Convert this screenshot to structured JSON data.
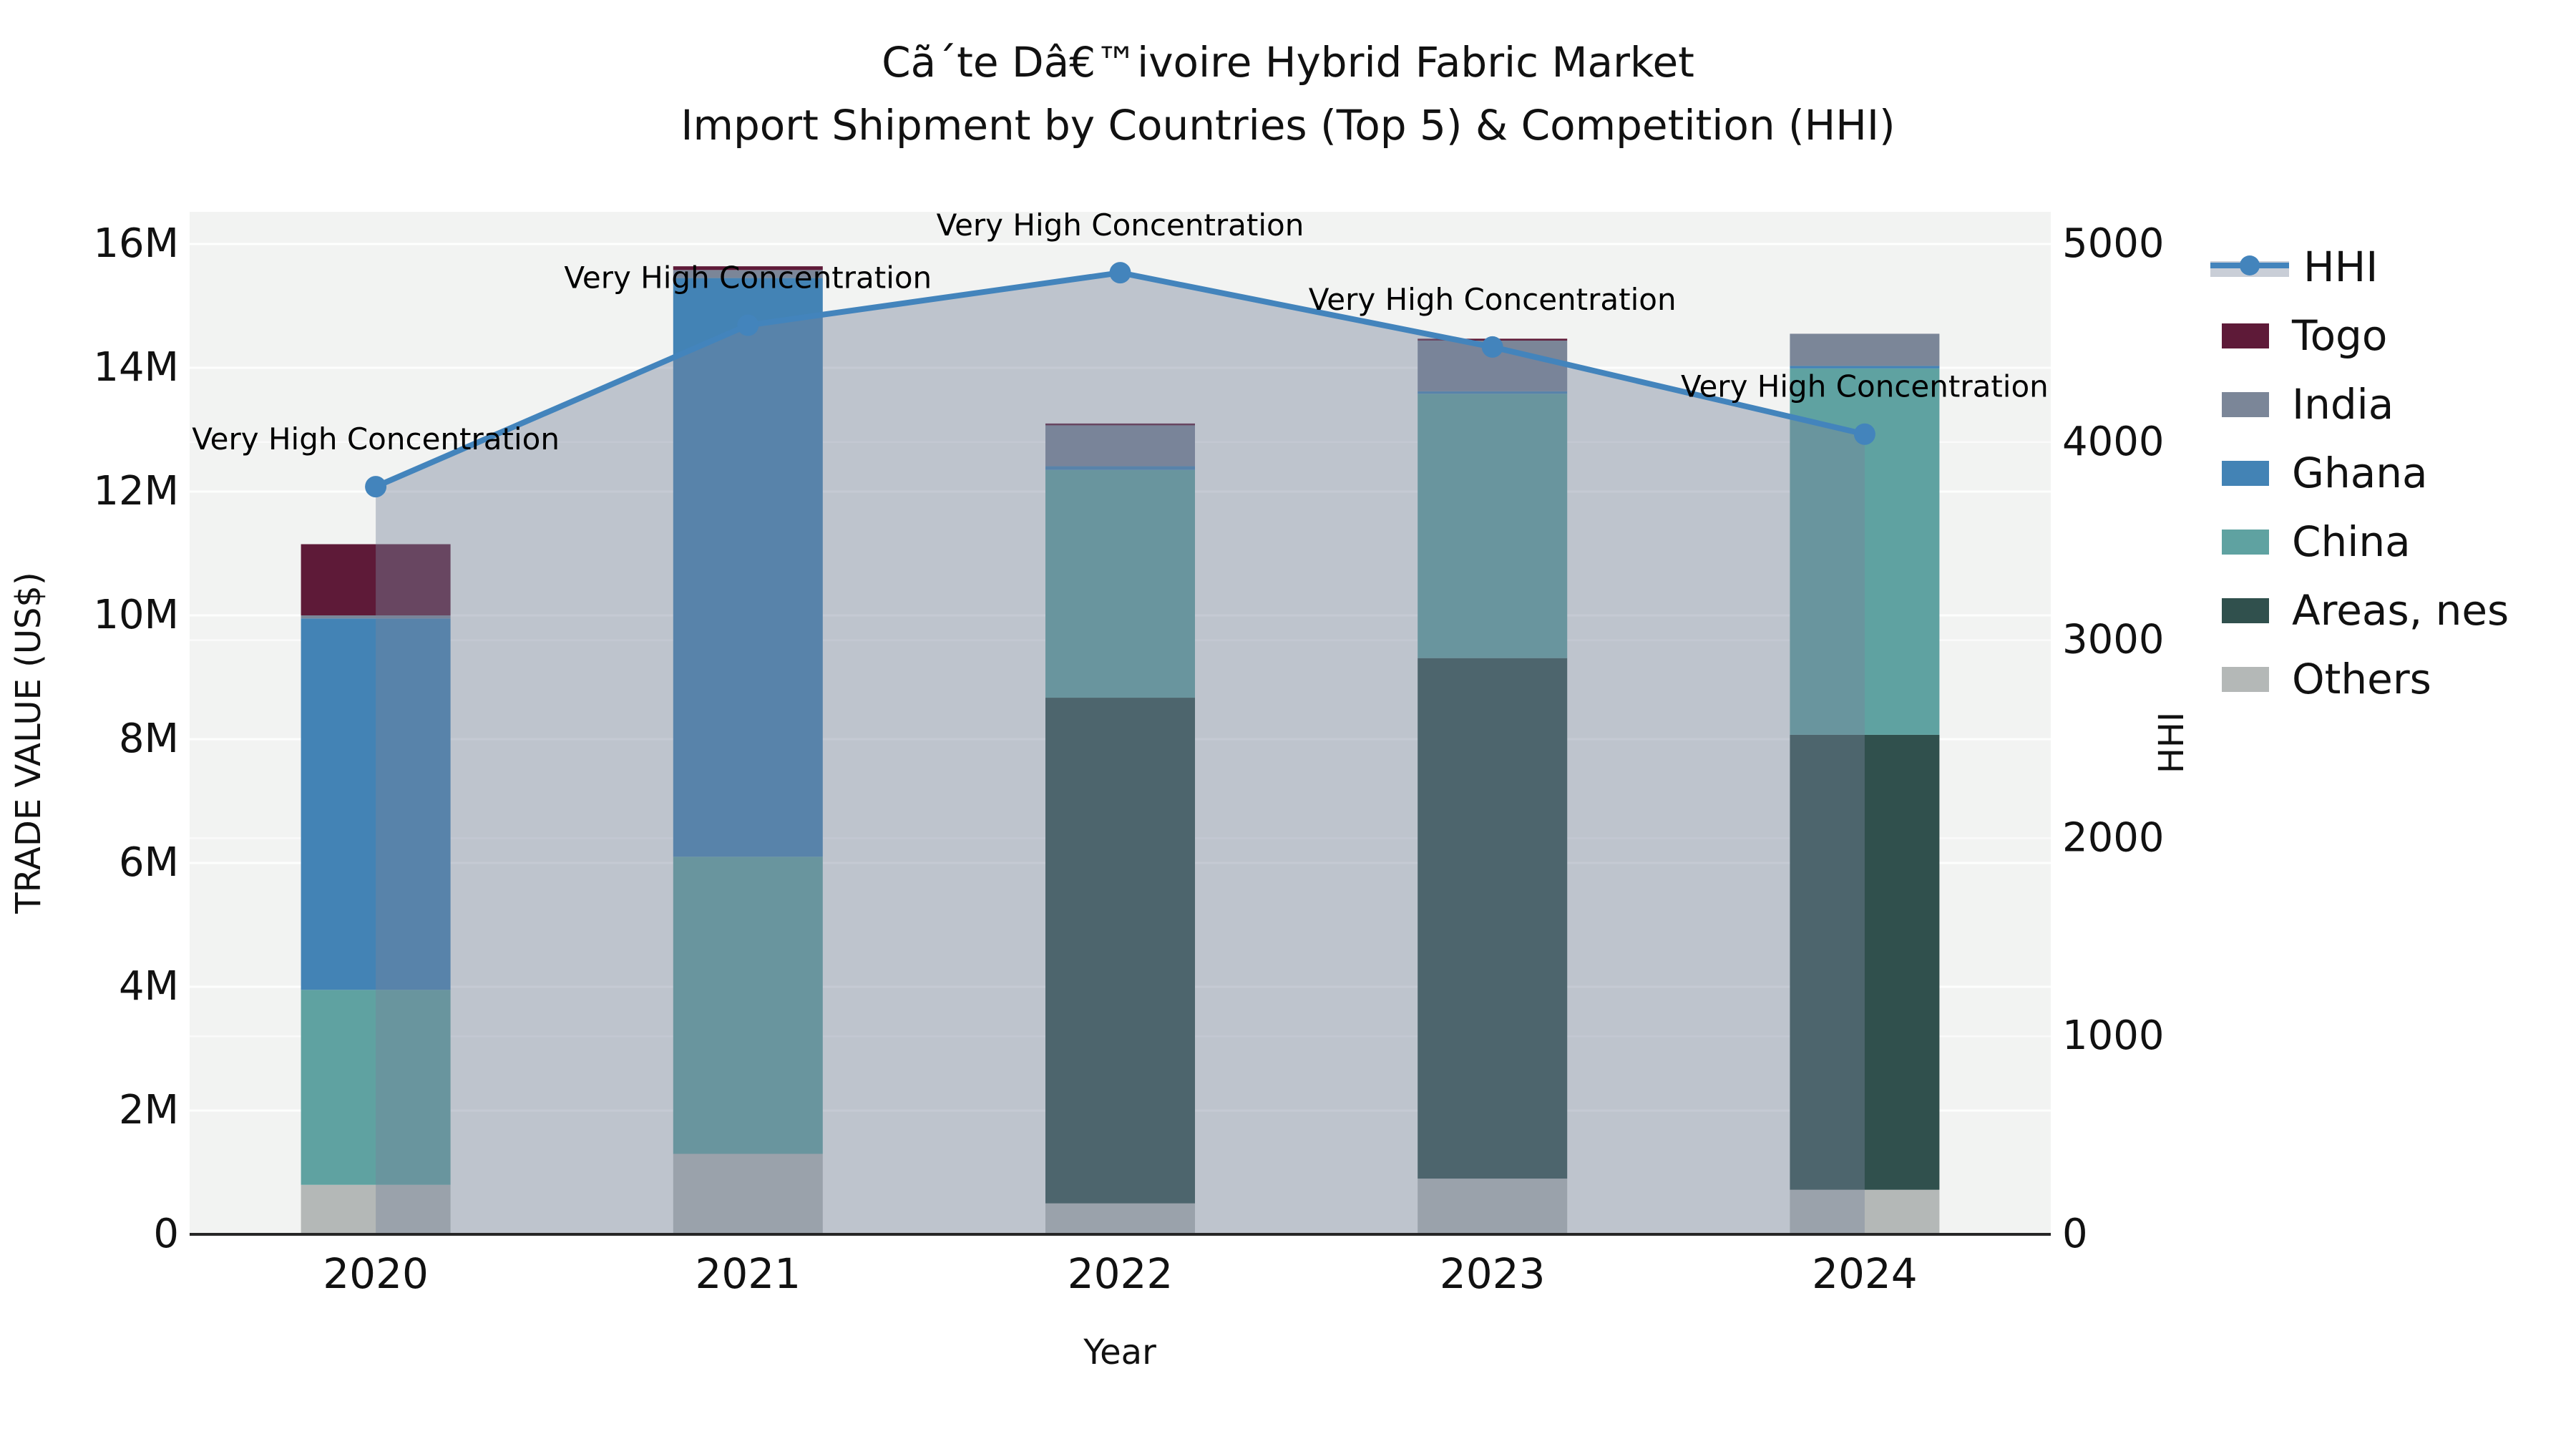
{
  "title": "Cã´te Dâ€™ivoire Hybrid Fabric Market",
  "subtitle": "Import Shipment by Countries (Top 5) & Competition (HHI)",
  "annotation_text": "Very High Concentration",
  "axes": {
    "left_title": "TRADE VALUE (US$)",
    "right_title": "HHI",
    "x_title": "Year",
    "left_tick_labels": [
      "0",
      "2M",
      "4M",
      "6M",
      "8M",
      "10M",
      "12M",
      "14M",
      "16M"
    ],
    "left_tick_values_millions": [
      0,
      2,
      4,
      6,
      8,
      10,
      12,
      14,
      16
    ],
    "right_tick_labels": [
      "0",
      "1000",
      "2000",
      "3000",
      "4000",
      "5000"
    ],
    "right_tick_values": [
      0,
      1000,
      2000,
      3000,
      4000,
      5000
    ],
    "left_max_millions": 16,
    "right_max": 5000
  },
  "legend": {
    "items": [
      {
        "label": "HHI",
        "type": "line",
        "color": "#4384bc"
      },
      {
        "label": "Togo",
        "type": "patch",
        "color": "#5e1a38"
      },
      {
        "label": "India",
        "type": "patch",
        "color": "#7b8698"
      },
      {
        "label": "Ghana",
        "type": "patch",
        "color": "#4383b5"
      },
      {
        "label": "China",
        "type": "patch",
        "color": "#5fa2a1"
      },
      {
        "label": "Areas, nes",
        "type": "patch",
        "color": "#30504d"
      },
      {
        "label": "Others",
        "type": "patch",
        "color": "#b4b8b7"
      }
    ]
  },
  "chart_data": {
    "type": "bar",
    "subtype": "stacked-bars-with-line-overlay",
    "categories": [
      "2020",
      "2021",
      "2022",
      "2023",
      "2024"
    ],
    "unit": "US$ millions",
    "series": [
      {
        "name": "Others",
        "color": "#b4b8b7",
        "values": [
          0.8,
          1.3,
          0.5,
          0.9,
          0.72
        ]
      },
      {
        "name": "Areas, nes",
        "color": "#30504d",
        "values": [
          0.0,
          0.0,
          8.17,
          8.41,
          7.35
        ]
      },
      {
        "name": "China",
        "color": "#5fa2a1",
        "values": [
          3.15,
          4.8,
          3.68,
          4.27,
          5.92
        ]
      },
      {
        "name": "Ghana",
        "color": "#4383b5",
        "values": [
          6.0,
          9.35,
          0.06,
          0.04,
          0.04
        ]
      },
      {
        "name": "India",
        "color": "#7b8698",
        "values": [
          0.05,
          0.13,
          0.66,
          0.82,
          0.52
        ]
      },
      {
        "name": "Togo",
        "color": "#5e1a38",
        "values": [
          1.15,
          0.06,
          0.03,
          0.03,
          0.0
        ]
      }
    ],
    "bar_totals_millions": [
      11.15,
      15.64,
      13.1,
      14.47,
      14.55
    ],
    "line_series": {
      "name": "HHI",
      "color": "#4384bc",
      "area_fill": "rgba(119,132,154,0.42)",
      "values": [
        3775,
        4590,
        4855,
        4480,
        4040
      ],
      "axis": "right",
      "point_annotations": [
        "Very High Concentration",
        "Very High Concentration",
        "Very High Concentration",
        "Very High Concentration",
        "Very High Concentration"
      ]
    },
    "ylim_left_millions": [
      0,
      16
    ],
    "ylim_right": [
      0,
      5000
    ],
    "grid": true,
    "legend_position": "right",
    "plot_bg": "#f2f3f2"
  }
}
